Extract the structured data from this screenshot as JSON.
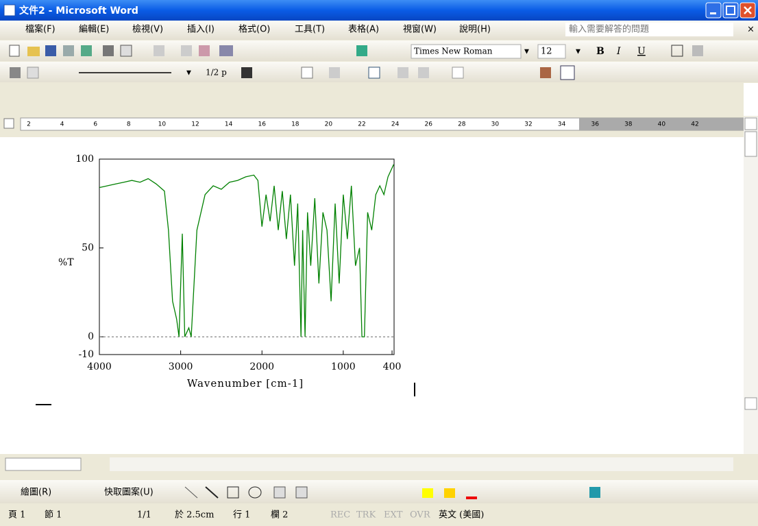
{
  "window": {
    "title": "文件2 - Microsoft Word"
  },
  "menu": {
    "items": [
      "檔案(F)",
      "編輯(E)",
      "檢視(V)",
      "插入(I)",
      "格式(O)",
      "工具(T)",
      "表格(A)",
      "視窗(W)",
      "說明(H)"
    ],
    "help_box": "輸入需要解答的問題"
  },
  "toolbar": {
    "font": "Times New Roman",
    "size": "12",
    "format_buttons": [
      "B",
      "I",
      "U"
    ],
    "line_weight": "1/2 p"
  },
  "ruler": {
    "numbers": [
      "2",
      "4",
      "6",
      "8",
      "10",
      "12",
      "14",
      "16",
      "18",
      "20",
      "22",
      "24",
      "26",
      "28",
      "30",
      "32",
      "34",
      "36",
      "38",
      "40",
      "42"
    ]
  },
  "chart_data": {
    "type": "line",
    "x_label": "Wavenumber [cm-1]",
    "y_label": "%T",
    "x": [
      4000,
      3900,
      3800,
      3700,
      3600,
      3500,
      3400,
      3300,
      3200,
      3150,
      3100,
      3050,
      3020,
      2980,
      2950,
      2900,
      2870,
      2800,
      2700,
      2600,
      2500,
      2400,
      2300,
      2200,
      2100,
      2050,
      2000,
      1950,
      1900,
      1850,
      1800,
      1750,
      1700,
      1650,
      1600,
      1560,
      1520,
      1500,
      1470,
      1440,
      1400,
      1350,
      1300,
      1250,
      1200,
      1150,
      1100,
      1050,
      1000,
      950,
      900,
      850,
      800,
      770,
      740,
      700,
      650,
      600,
      550,
      500,
      450,
      400,
      380
    ],
    "values": [
      84,
      85,
      86,
      87,
      88,
      87,
      89,
      86,
      82,
      60,
      20,
      10,
      0,
      58,
      0,
      5,
      0,
      60,
      80,
      85,
      83,
      87,
      88,
      90,
      91,
      88,
      62,
      80,
      65,
      85,
      60,
      82,
      55,
      80,
      40,
      75,
      0,
      60,
      0,
      70,
      40,
      78,
      30,
      70,
      60,
      20,
      75,
      30,
      80,
      55,
      85,
      40,
      50,
      0,
      0,
      70,
      60,
      80,
      85,
      80,
      90,
      95,
      97
    ],
    "color": "#008000",
    "xlim": [
      4000,
      375
    ],
    "ylim": [
      -10,
      100
    ],
    "xticks": [
      4000,
      3000,
      2000,
      1000,
      400
    ],
    "yticks": [
      -10,
      0,
      50,
      100
    ],
    "reference_line": 0
  },
  "drawing_toolbar": {
    "items": [
      "繪圖(R)",
      "快取圖案(U)"
    ]
  },
  "status_bar": {
    "items": [
      "頁 1",
      "節 1",
      "1/1",
      "於 2.5cm",
      "行 1",
      "欄 2",
      "REC",
      "TRK",
      "EXT",
      "OVR",
      "英文 (美國)"
    ]
  }
}
